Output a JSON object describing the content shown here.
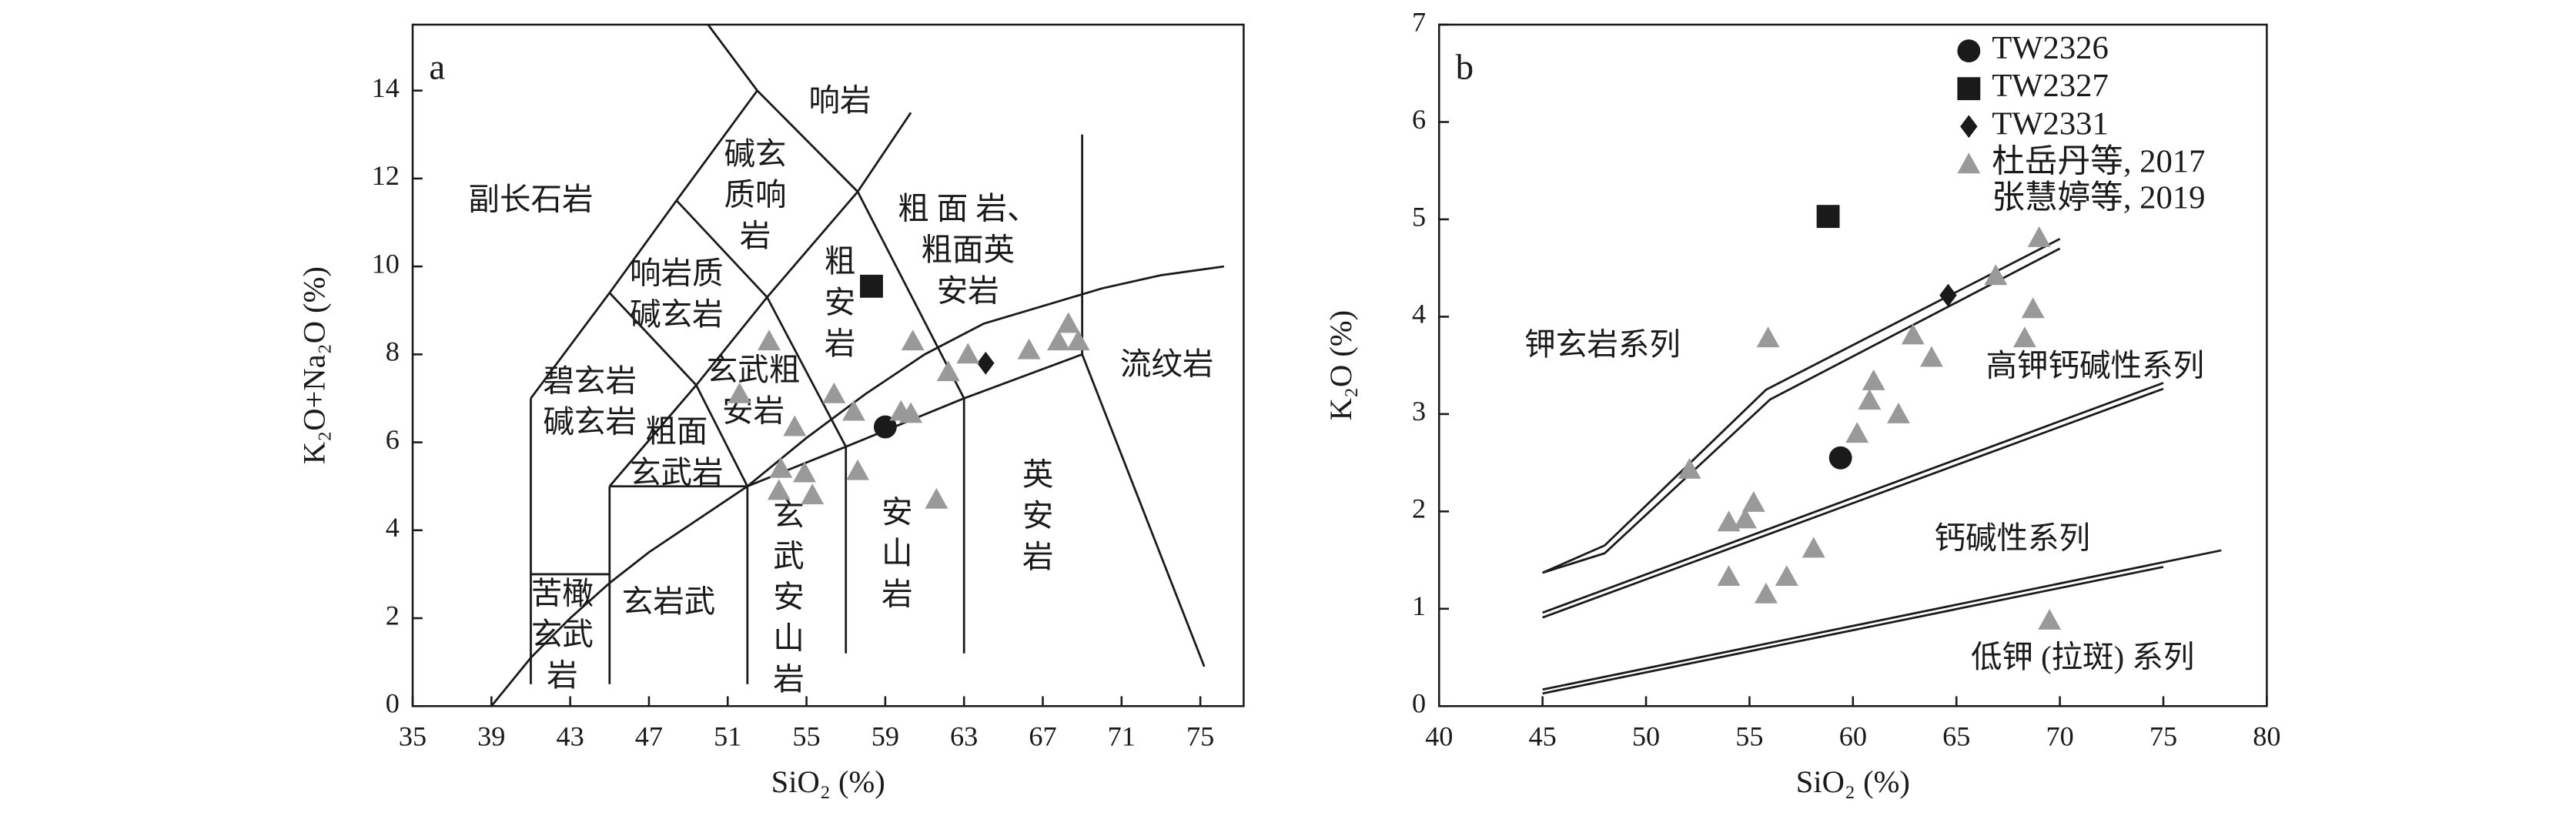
{
  "chart_data": [
    {
      "type": "scatter",
      "panel_label": "a",
      "xlabel": "SiO₂ (%)",
      "ylabel": "K₂O+Na₂O (%)",
      "xlim": [
        35,
        77.2
      ],
      "ylim": [
        0,
        15.5
      ],
      "xticks": [
        35,
        39,
        43,
        47,
        51,
        55,
        59,
        63,
        67,
        71,
        75
      ],
      "yticks": [
        0,
        2,
        4,
        6,
        8,
        10,
        12,
        14
      ],
      "series": [
        {
          "marker": "circle",
          "color": "#1a1a1a",
          "x": [
            59.0
          ],
          "y": [
            6.35
          ]
        },
        {
          "marker": "square",
          "color": "#1a1a1a",
          "x": [
            58.3
          ],
          "y": [
            9.55
          ]
        },
        {
          "marker": "diamond",
          "color": "#1a1a1a",
          "x": [
            64.1
          ],
          "y": [
            7.8
          ]
        },
        {
          "marker": "triangle",
          "color": "#999999",
          "x": [
            51.6,
            53.1,
            54.4,
            56.4,
            57.4,
            59.8,
            60.3,
            60.4,
            62.2,
            63.2,
            66.3,
            67.8,
            68.3,
            68.8,
            53.7,
            54.9,
            55.3,
            53.6,
            57.6,
            61.6
          ],
          "y": [
            7.1,
            8.3,
            6.35,
            7.1,
            6.7,
            6.7,
            6.65,
            8.3,
            7.6,
            8.0,
            8.1,
            8.3,
            8.7,
            8.3,
            5.4,
            5.3,
            4.8,
            4.9,
            5.35,
            4.7
          ]
        }
      ],
      "field_lines": [
        {
          "x": [
            41,
            41
          ],
          "y": [
            0.5,
            7
          ]
        },
        {
          "x": [
            41,
            45
          ],
          "y": [
            3,
            3
          ]
        },
        {
          "x": [
            45,
            45
          ],
          "y": [
            0.5,
            5
          ]
        },
        {
          "x": [
            45,
            52
          ],
          "y": [
            5,
            5
          ]
        },
        {
          "x": [
            52,
            52
          ],
          "y": [
            0.5,
            5
          ]
        },
        {
          "x": [
            57,
            57
          ],
          "y": [
            1.2,
            5.9
          ]
        },
        {
          "x": [
            63,
            63
          ],
          "y": [
            1.2,
            7
          ]
        },
        {
          "x": [
            69,
            69
          ],
          "y": [
            8,
            13
          ]
        },
        {
          "x": [
            69,
            75.2
          ],
          "y": [
            8,
            0.9
          ]
        },
        {
          "x": [
            41,
            45,
            48.4,
            52.5
          ],
          "y": [
            7,
            9.4,
            11.5,
            14
          ]
        },
        {
          "x": [
            50,
            52.5,
            57.6,
            60.3
          ],
          "y": [
            15.5,
            14,
            11.7,
            13.5
          ]
        },
        {
          "x": [
            45,
            49.4,
            53,
            57.6
          ],
          "y": [
            5,
            7.3,
            9.3,
            11.7
          ]
        },
        {
          "x": [
            45,
            49.4,
            52
          ],
          "y": [
            9.4,
            7.3,
            5
          ]
        },
        {
          "x": [
            48.4,
            53,
            57
          ],
          "y": [
            11.5,
            9.3,
            5.9
          ]
        },
        {
          "x": [
            57.6,
            63
          ],
          "y": [
            11.7,
            7
          ]
        },
        {
          "x": [
            52,
            57,
            63,
            69
          ],
          "y": [
            5,
            5.9,
            7,
            8
          ]
        },
        {
          "x": [
            39,
            41,
            43,
            45,
            47,
            49,
            51,
            52
          ],
          "y": [
            0,
            1.1,
            2.0,
            2.8,
            3.5,
            4.1,
            4.7,
            5.0
          ]
        },
        {
          "x": [
            52,
            55,
            58,
            61,
            64,
            67,
            70,
            73,
            76.2
          ],
          "y": [
            5.0,
            6.1,
            7.1,
            8.0,
            8.7,
            9.1,
            9.5,
            9.8,
            10.0
          ]
        }
      ],
      "annotations": [
        {
          "text": [
            "副长石岩"
          ],
          "x": 41,
          "y": 11.45
        },
        {
          "text": [
            "响岩"
          ],
          "x": 56.7,
          "y": 13.7
        },
        {
          "text": [
            "碱玄",
            "质响",
            "岩"
          ],
          "x": 52.4,
          "y": 11.55
        },
        {
          "text": [
            "粗 面 岩、",
            "粗面英",
            "安岩"
          ],
          "x": 63.2,
          "y": 10.3
        },
        {
          "text": [
            "粗",
            "安",
            "岩"
          ],
          "x": 56.7,
          "y": 9.1
        },
        {
          "text": [
            "响岩质",
            "碱玄岩"
          ],
          "x": 48.4,
          "y": 9.3
        },
        {
          "text": [
            "碧玄岩",
            "碱玄岩"
          ],
          "x": 44,
          "y": 6.85
        },
        {
          "text": [
            "玄武粗",
            "安岩"
          ],
          "x": 52.3,
          "y": 7.1
        },
        {
          "text": [
            "粗面",
            "玄武岩"
          ],
          "x": 48.4,
          "y": 5.7
        },
        {
          "text": [
            "苦橄",
            "玄武",
            "岩"
          ],
          "x": 42.6,
          "y": 1.55
        },
        {
          "text": [
            "玄岩武"
          ],
          "x": 48,
          "y": 2.3
        },
        {
          "text": [
            "玄",
            "武",
            "安",
            "山",
            "岩"
          ],
          "x": 54.1,
          "y": 2.4
        },
        {
          "text": [
            "安",
            "山",
            "岩"
          ],
          "x": 59.6,
          "y": 3.4
        },
        {
          "text": [
            "英",
            "安",
            "岩"
          ],
          "x": 66.75,
          "y": 4.25
        },
        {
          "text": [
            "流纹岩"
          ],
          "x": 73.3,
          "y": 7.7
        }
      ]
    },
    {
      "type": "scatter",
      "panel_label": "b",
      "xlabel": "SiO₂ (%)",
      "ylabel": "K₂O (%)",
      "xlim": [
        40,
        80
      ],
      "ylim": [
        0,
        7
      ],
      "xticks": [
        40,
        45,
        50,
        55,
        60,
        65,
        70,
        75,
        80
      ],
      "yticks": [
        0,
        1,
        2,
        3,
        4,
        5,
        6,
        7
      ],
      "legend": "upper right",
      "series": [
        {
          "name": "TW2326",
          "marker": "circle",
          "color": "#1a1a1a",
          "x": [
            59.4
          ],
          "y": [
            2.55
          ]
        },
        {
          "name": "TW2327",
          "marker": "square",
          "color": "#1a1a1a",
          "x": [
            58.8
          ],
          "y": [
            5.03
          ]
        },
        {
          "name": "TW2331",
          "marker": "diamond",
          "color": "#1a1a1a",
          "x": [
            64.6
          ],
          "y": [
            4.22
          ]
        },
        {
          "name": [
            "杜岳丹等, 2017",
            "张慧婷等, 2019"
          ],
          "marker": "triangle",
          "color": "#999999",
          "x": [
            52.1,
            54.0,
            54.8,
            55.2,
            55.9,
            54.0,
            55.8,
            56.8,
            58.1,
            60.2,
            60.8,
            61.0,
            62.2,
            62.9,
            63.8,
            66.9,
            68.3,
            68.7,
            69.0,
            69.5
          ],
          "y": [
            2.43,
            1.89,
            1.92,
            2.09,
            3.78,
            1.33,
            1.15,
            1.33,
            1.62,
            2.8,
            3.14,
            3.34,
            3.0,
            3.81,
            3.58,
            4.42,
            3.78,
            4.08,
            4.81,
            0.88
          ]
        }
      ],
      "field_lines": [
        {
          "x": [
            45,
            48,
            55.8,
            70
          ],
          "y": [
            1.37,
            1.65,
            3.25,
            4.8
          ]
        },
        {
          "x": [
            45,
            48,
            56,
            70
          ],
          "y": [
            1.37,
            1.57,
            3.15,
            4.7
          ]
        },
        {
          "x": [
            45,
            75
          ],
          "y": [
            0.96,
            3.32
          ]
        },
        {
          "x": [
            45,
            75
          ],
          "y": [
            0.91,
            3.26
          ]
        },
        {
          "x": [
            45,
            77.8
          ],
          "y": [
            0.17,
            1.6
          ]
        },
        {
          "x": [
            45,
            75
          ],
          "y": [
            0.13,
            1.43
          ]
        }
      ],
      "annotations": [
        {
          "text": [
            "钾玄岩系列"
          ],
          "x": 47.9,
          "y": 3.68
        },
        {
          "text": [
            "高钾钙碱性系列"
          ],
          "x": 71.7,
          "y": 3.46
        },
        {
          "text": [
            "钙碱性系列"
          ],
          "x": 67.7,
          "y": 1.69
        },
        {
          "text": [
            "低钾 (拉斑) 系列"
          ],
          "x": 71.1,
          "y": 0.47
        }
      ]
    }
  ]
}
